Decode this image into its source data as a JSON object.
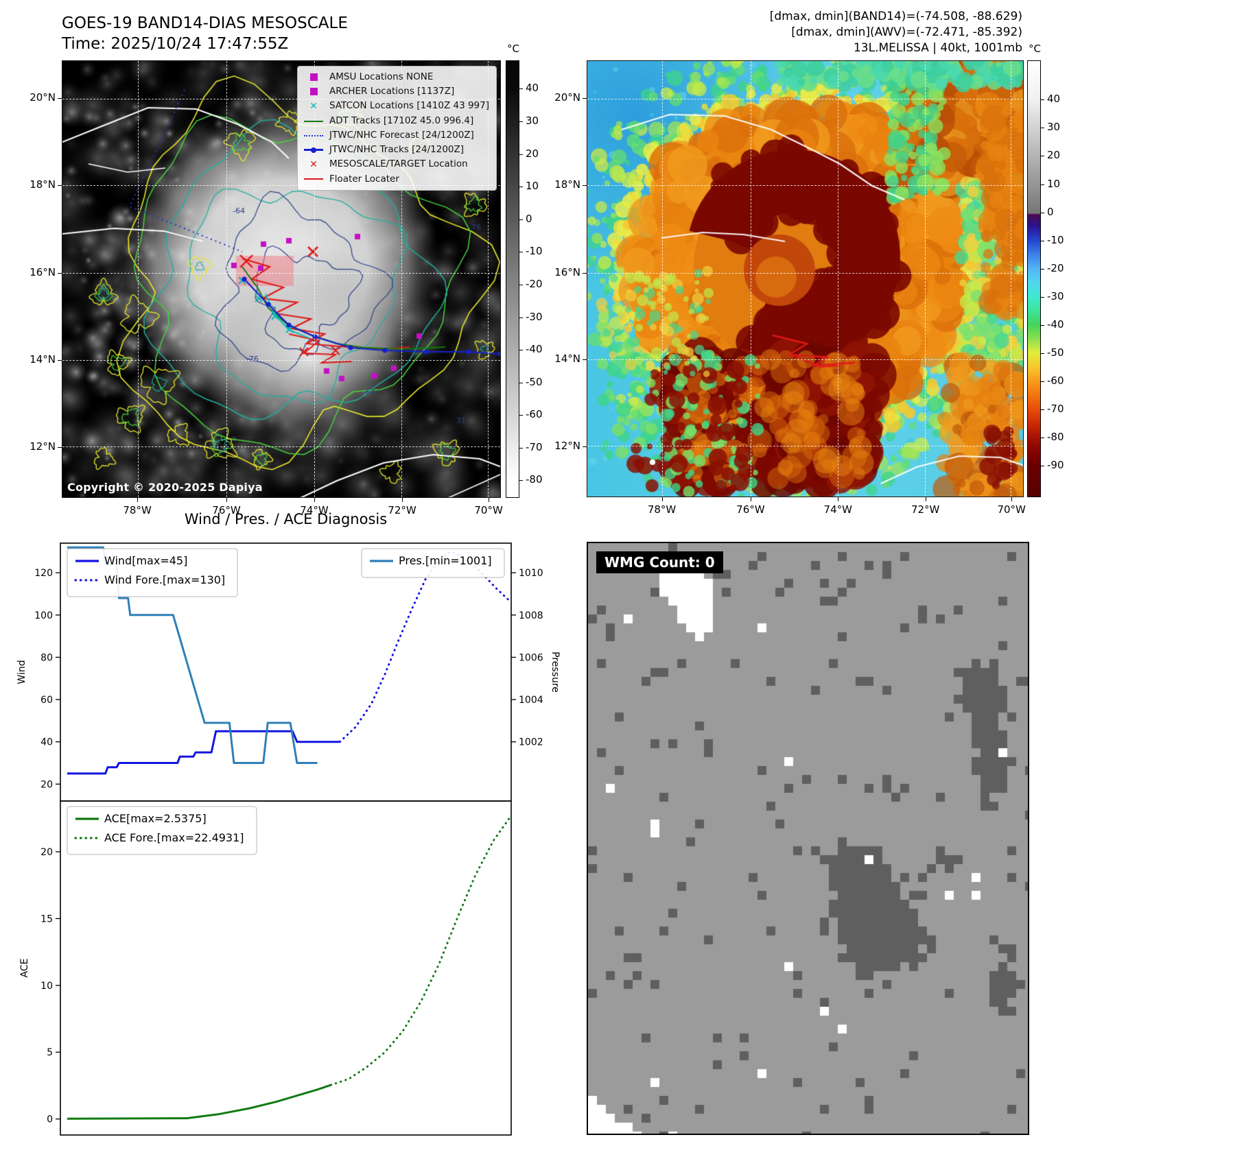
{
  "band14": {
    "title": "GOES-19 BAND14-DIAS MESOSCALE",
    "subtitle": "Time: 2025/10/24 17:47:55Z",
    "copyright": "Copyright © 2020-2025 Dapiya",
    "colorbar_unit": "°C",
    "colorbar_ticks": [
      "40",
      "30",
      "20",
      "10",
      "0",
      "-10",
      "-20",
      "-30",
      "-40",
      "-50",
      "-60",
      "-70",
      "-80"
    ],
    "lat_ticks": [
      "20°N",
      "18°N",
      "16°N",
      "14°N",
      "12°N"
    ],
    "lon_ticks": [
      "78°W",
      "76°W",
      "74°W",
      "72°W",
      "70°W"
    ],
    "contour_labels": [
      "-64",
      "-76",
      "-76",
      "64",
      "31"
    ],
    "legend": [
      {
        "marker": "square",
        "color": "#c410c4",
        "label": "AMSU Locations NONE"
      },
      {
        "marker": "square",
        "color": "#c410c4",
        "label": "ARCHER Locations [1137Z]"
      },
      {
        "marker": "x",
        "color": "#00b8b8",
        "label": "SATCON Locations [1410Z 43 997]"
      },
      {
        "marker": "line",
        "color": "#127a12",
        "label": "ADT Tracks [1710Z 45.0 996.4]"
      },
      {
        "marker": "dotted",
        "color": "#2233cc",
        "label": "JTWC/NHC Forecast [24/1200Z]"
      },
      {
        "marker": "line-dot",
        "color": "#1620cc",
        "label": "JTWC/NHC Tracks [24/1200Z]"
      },
      {
        "marker": "x",
        "color": "#dd1515",
        "label": "MESOSCALE/TARGET Location"
      },
      {
        "marker": "line",
        "color": "#dd1515",
        "label": "Floater Locater"
      }
    ]
  },
  "awv": {
    "title_lines": [
      "[dmax, dmin](BAND14)=(-74.508, -88.629)",
      "[dmax, dmin](AWV)=(-72.471, -85.392)",
      "13L.MELISSA | 40kt, 1001mb"
    ],
    "colorbar_unit": "°C",
    "colorbar_ticks": [
      "40",
      "30",
      "20",
      "10",
      "0",
      "-10",
      "-20",
      "-30",
      "-40",
      "-50",
      "-60",
      "-70",
      "-80",
      "-90"
    ],
    "lat_ticks": [
      "20°N",
      "18°N",
      "16°N",
      "14°N",
      "12°N"
    ],
    "lon_ticks": [
      "78°W",
      "76°W",
      "74°W",
      "72°W",
      "70°W"
    ]
  },
  "wmg": {
    "label": "WMG Count: 0"
  },
  "colors": {
    "wind_line": "#1414e0",
    "pressure_line": "#2e7fb8",
    "ace_line": "#117a11",
    "magenta_marker": "#c410c4",
    "cyan_marker": "#00b8b8",
    "red_marker": "#dd1515"
  },
  "chart_data": [
    {
      "type": "line",
      "title": "Wind / Pres. / ACE Diagnosis",
      "ylabel": "Wind",
      "ylabel_right": "Pressure",
      "ylim": [
        12,
        134
      ],
      "yticks": [
        20,
        40,
        60,
        80,
        100,
        120
      ],
      "ylim_right": [
        999.2,
        1011.4
      ],
      "yticks_right": [
        1002,
        1004,
        1006,
        1008,
        1010
      ],
      "xlim": [
        0,
        1
      ],
      "legend_position": "upper-left and upper-right",
      "series": [
        {
          "name": "Wind[max=45]",
          "axis": "left",
          "style": "solid",
          "color": "#1414e0",
          "points": [
            [
              0.015,
              25
            ],
            [
              0.1,
              25
            ],
            [
              0.105,
              28
            ],
            [
              0.125,
              28
            ],
            [
              0.13,
              30
            ],
            [
              0.26,
              30
            ],
            [
              0.265,
              33
            ],
            [
              0.295,
              33
            ],
            [
              0.3,
              35
            ],
            [
              0.335,
              35
            ],
            [
              0.345,
              45
            ],
            [
              0.515,
              45
            ],
            [
              0.525,
              40
            ],
            [
              0.62,
              40
            ]
          ]
        },
        {
          "name": "Wind Fore.[max=130]",
          "axis": "left",
          "style": "dotted",
          "color": "#1414e0",
          "points": [
            [
              0.62,
              40
            ],
            [
              0.655,
              47
            ],
            [
              0.69,
              58
            ],
            [
              0.72,
              72
            ],
            [
              0.75,
              88
            ],
            [
              0.78,
              103
            ],
            [
              0.81,
              117
            ],
            [
              0.84,
              126
            ],
            [
              0.865,
              130
            ],
            [
              0.89,
              128
            ],
            [
              0.93,
              121
            ],
            [
              0.965,
              113
            ],
            [
              1.0,
              106
            ]
          ]
        },
        {
          "name": "Pres.[min=1001]",
          "axis": "right",
          "style": "solid",
          "color": "#2e7fb8",
          "points": [
            [
              0.015,
              1011.2
            ],
            [
              0.095,
              1011.2
            ],
            [
              0.1,
              1010.4
            ],
            [
              0.125,
              1010.4
            ],
            [
              0.13,
              1008.8
            ],
            [
              0.15,
              1008.8
            ],
            [
              0.155,
              1008.0
            ],
            [
              0.25,
              1008.0
            ],
            [
              0.32,
              1002.9
            ],
            [
              0.375,
              1002.9
            ],
            [
              0.385,
              1001.0
            ],
            [
              0.45,
              1001.0
            ],
            [
              0.46,
              1002.9
            ],
            [
              0.51,
              1002.9
            ],
            [
              0.525,
              1001.0
            ],
            [
              0.57,
              1001.0
            ]
          ]
        }
      ]
    },
    {
      "type": "line",
      "title": "",
      "ylabel": "ACE",
      "ylim": [
        -1.2,
        23.8
      ],
      "yticks": [
        0,
        5,
        10,
        15,
        20
      ],
      "xlim": [
        0,
        1
      ],
      "legend_position": "upper-left",
      "series": [
        {
          "name": "ACE[max=2.5375]",
          "axis": "left",
          "style": "solid",
          "color": "#117a11",
          "points": [
            [
              0.015,
              0.02
            ],
            [
              0.28,
              0.05
            ],
            [
              0.35,
              0.35
            ],
            [
              0.42,
              0.8
            ],
            [
              0.48,
              1.3
            ],
            [
              0.53,
              1.8
            ],
            [
              0.57,
              2.2
            ],
            [
              0.6,
              2.54
            ]
          ]
        },
        {
          "name": "ACE Fore.[max=22.4931]",
          "axis": "left",
          "style": "dotted",
          "color": "#117a11",
          "points": [
            [
              0.6,
              2.54
            ],
            [
              0.64,
              3.0
            ],
            [
              0.68,
              3.9
            ],
            [
              0.72,
              5.0
            ],
            [
              0.76,
              6.6
            ],
            [
              0.8,
              8.8
            ],
            [
              0.84,
              11.6
            ],
            [
              0.88,
              15.0
            ],
            [
              0.92,
              18.2
            ],
            [
              0.96,
              20.8
            ],
            [
              1.0,
              22.7
            ]
          ]
        }
      ]
    }
  ]
}
